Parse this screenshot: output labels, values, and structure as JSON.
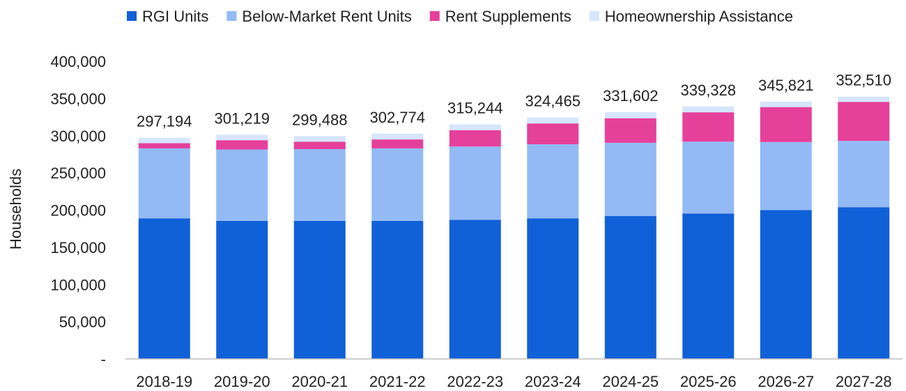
{
  "chart_data": {
    "type": "bar",
    "stacked": true,
    "title": "",
    "xlabel": "",
    "ylabel": "Households",
    "ylim": [
      0,
      400000
    ],
    "y_ticks": [
      0,
      50000,
      100000,
      150000,
      200000,
      250000,
      300000,
      350000,
      400000
    ],
    "y_tick_labels": [
      "-",
      "50,000",
      "100,000",
      "150,000",
      "200,000",
      "250,000",
      "300,000",
      "350,000",
      "400,000"
    ],
    "grid": false,
    "legend_position": "top",
    "categories": [
      "2018-19",
      "2019-20",
      "2020-21",
      "2021-22",
      "2022-23",
      "2023-24",
      "2024-25",
      "2025-26",
      "2026-27",
      "2027-28"
    ],
    "series": [
      {
        "name": "RGI Units",
        "color": "#1060d8",
        "values": [
          189000,
          185500,
          185500,
          185500,
          187000,
          189000,
          192000,
          195500,
          200000,
          204000
        ]
      },
      {
        "name": "Below-Market Rent Units",
        "color": "#93baf5",
        "values": [
          94000,
          96000,
          96500,
          97500,
          98500,
          99500,
          98500,
          96500,
          91500,
          89000
        ]
      },
      {
        "name": "Rent Supplements",
        "color": "#e5409a",
        "values": [
          7000,
          12500,
          10000,
          12000,
          22000,
          28000,
          33000,
          39500,
          47000,
          52500
        ]
      },
      {
        "name": "Homeownership Assistance",
        "color": "#d6e5fb",
        "values": [
          7194,
          7219,
          7488,
          7774,
          7744,
          7965,
          8102,
          7828,
          7321,
          7010
        ]
      }
    ],
    "totals": [
      297194,
      301219,
      299488,
      302774,
      315244,
      324465,
      331602,
      339328,
      345821,
      352510
    ],
    "total_labels": [
      "297,194",
      "301,219",
      "299,488",
      "302,774",
      "315,244",
      "324,465",
      "331,602",
      "339,328",
      "345,821",
      "352,510"
    ]
  }
}
